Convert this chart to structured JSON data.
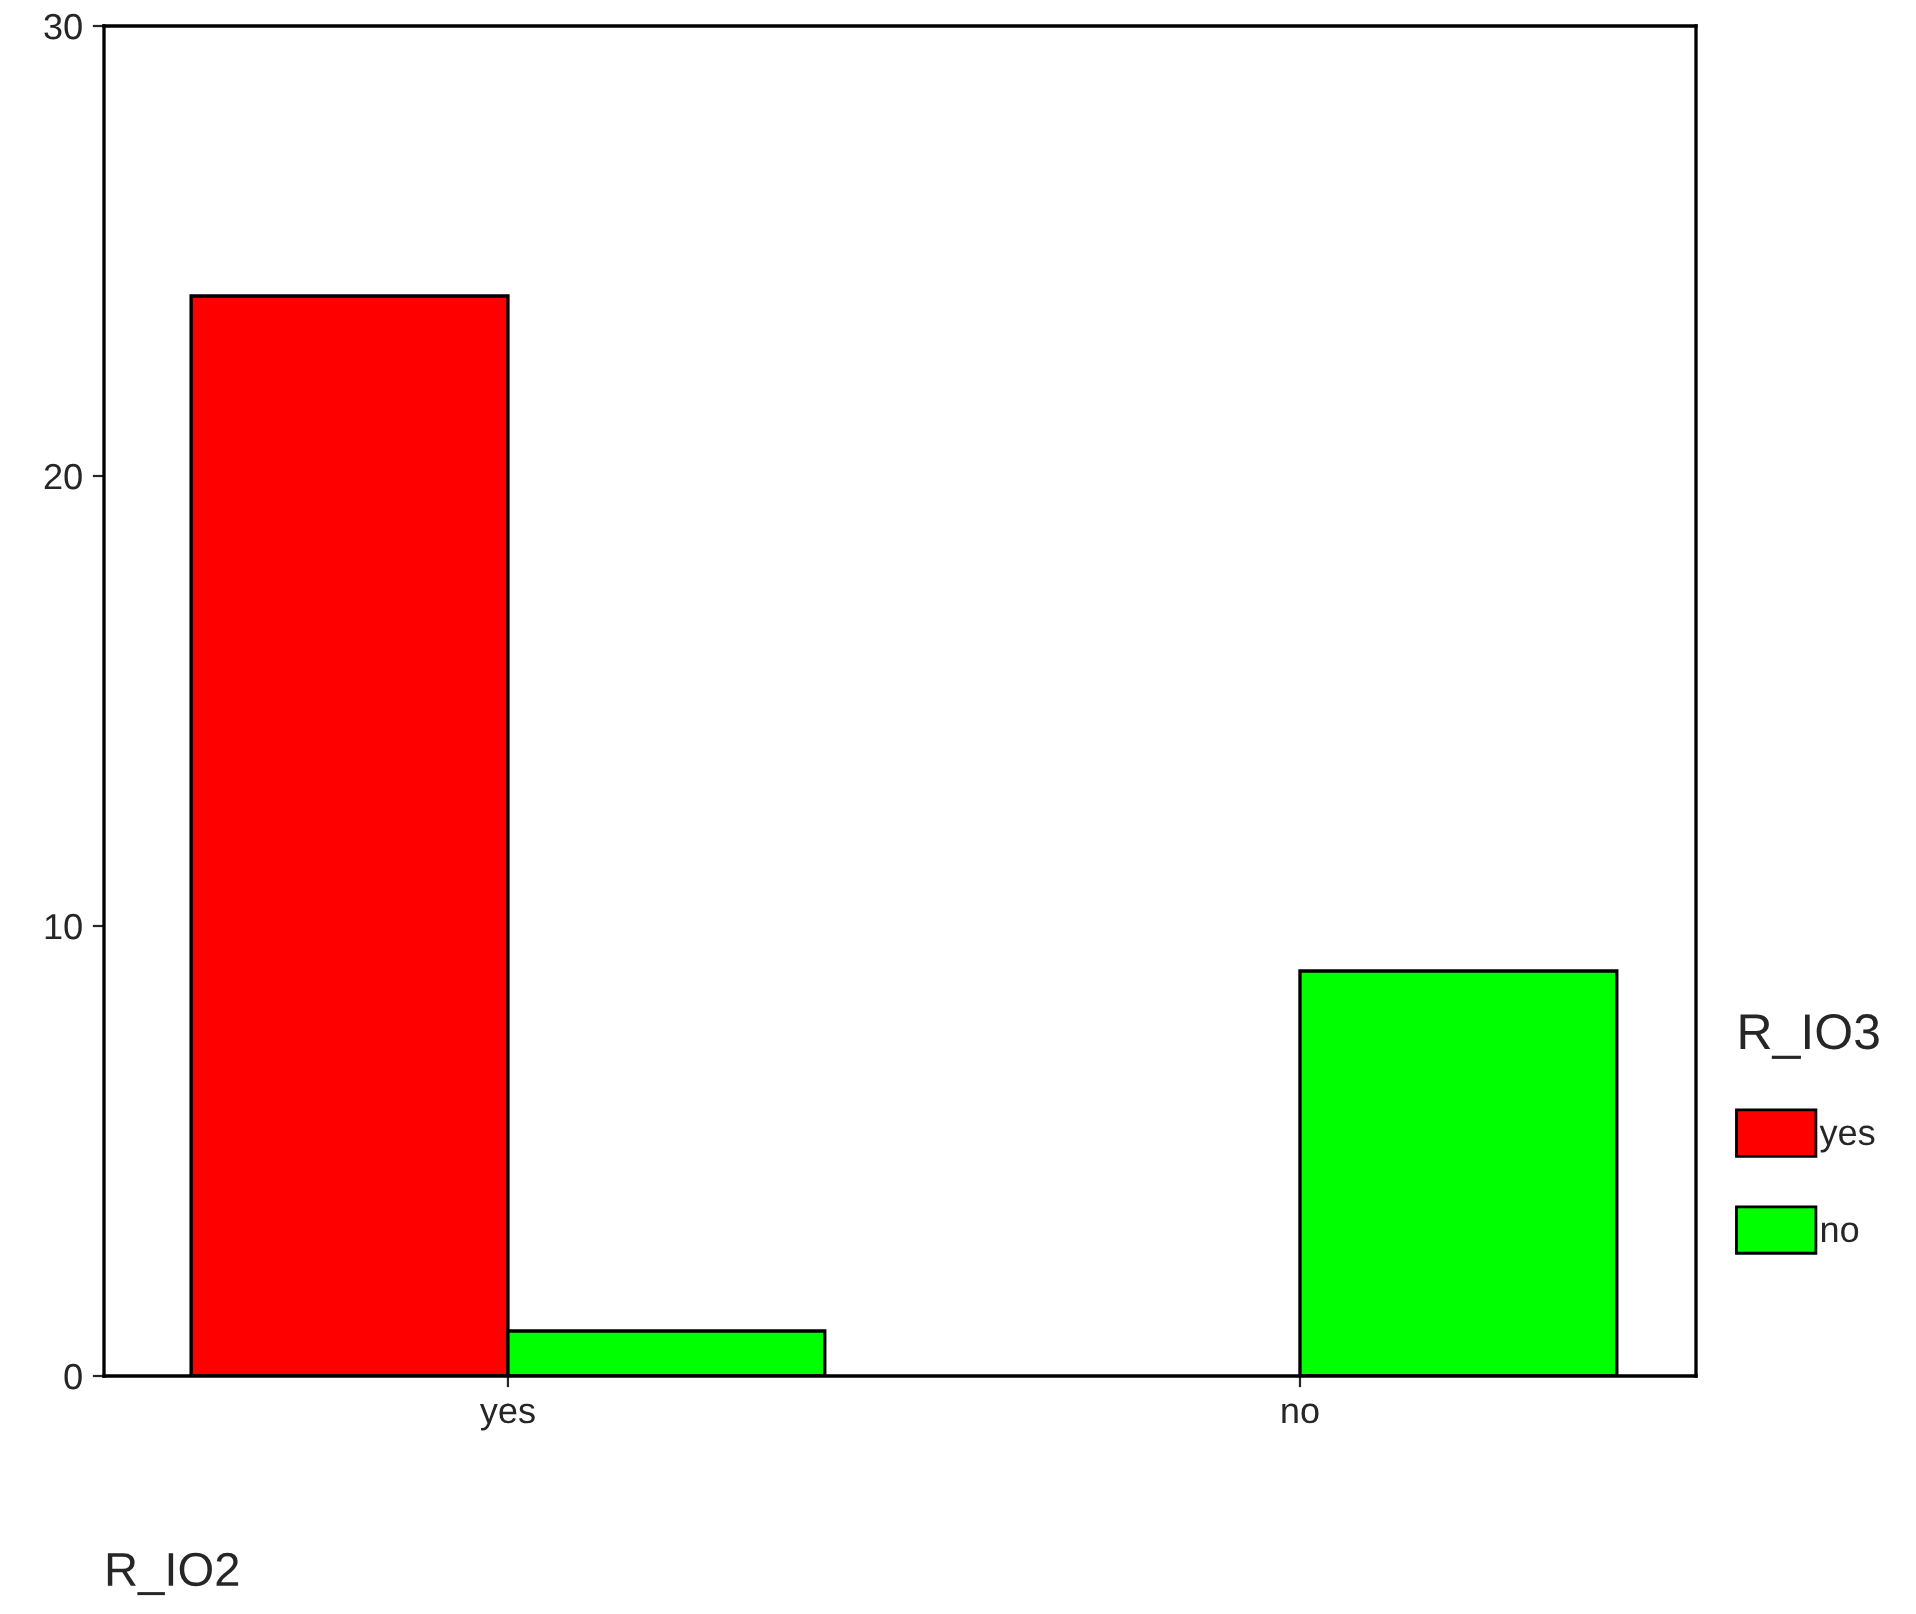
{
  "chart_data": {
    "type": "bar",
    "xlabel": "R_IO2",
    "legend_title": "R_IO3",
    "categories": [
      "yes",
      "no"
    ],
    "series": [
      {
        "name": "yes",
        "color": "#ff0000",
        "values": [
          24,
          null
        ]
      },
      {
        "name": "no",
        "color": "#00ff00",
        "values": [
          1,
          9
        ]
      }
    ],
    "ylim": [
      0,
      30
    ],
    "yticks": [
      0,
      10,
      20,
      30
    ],
    "grid": false,
    "legend": "right"
  }
}
